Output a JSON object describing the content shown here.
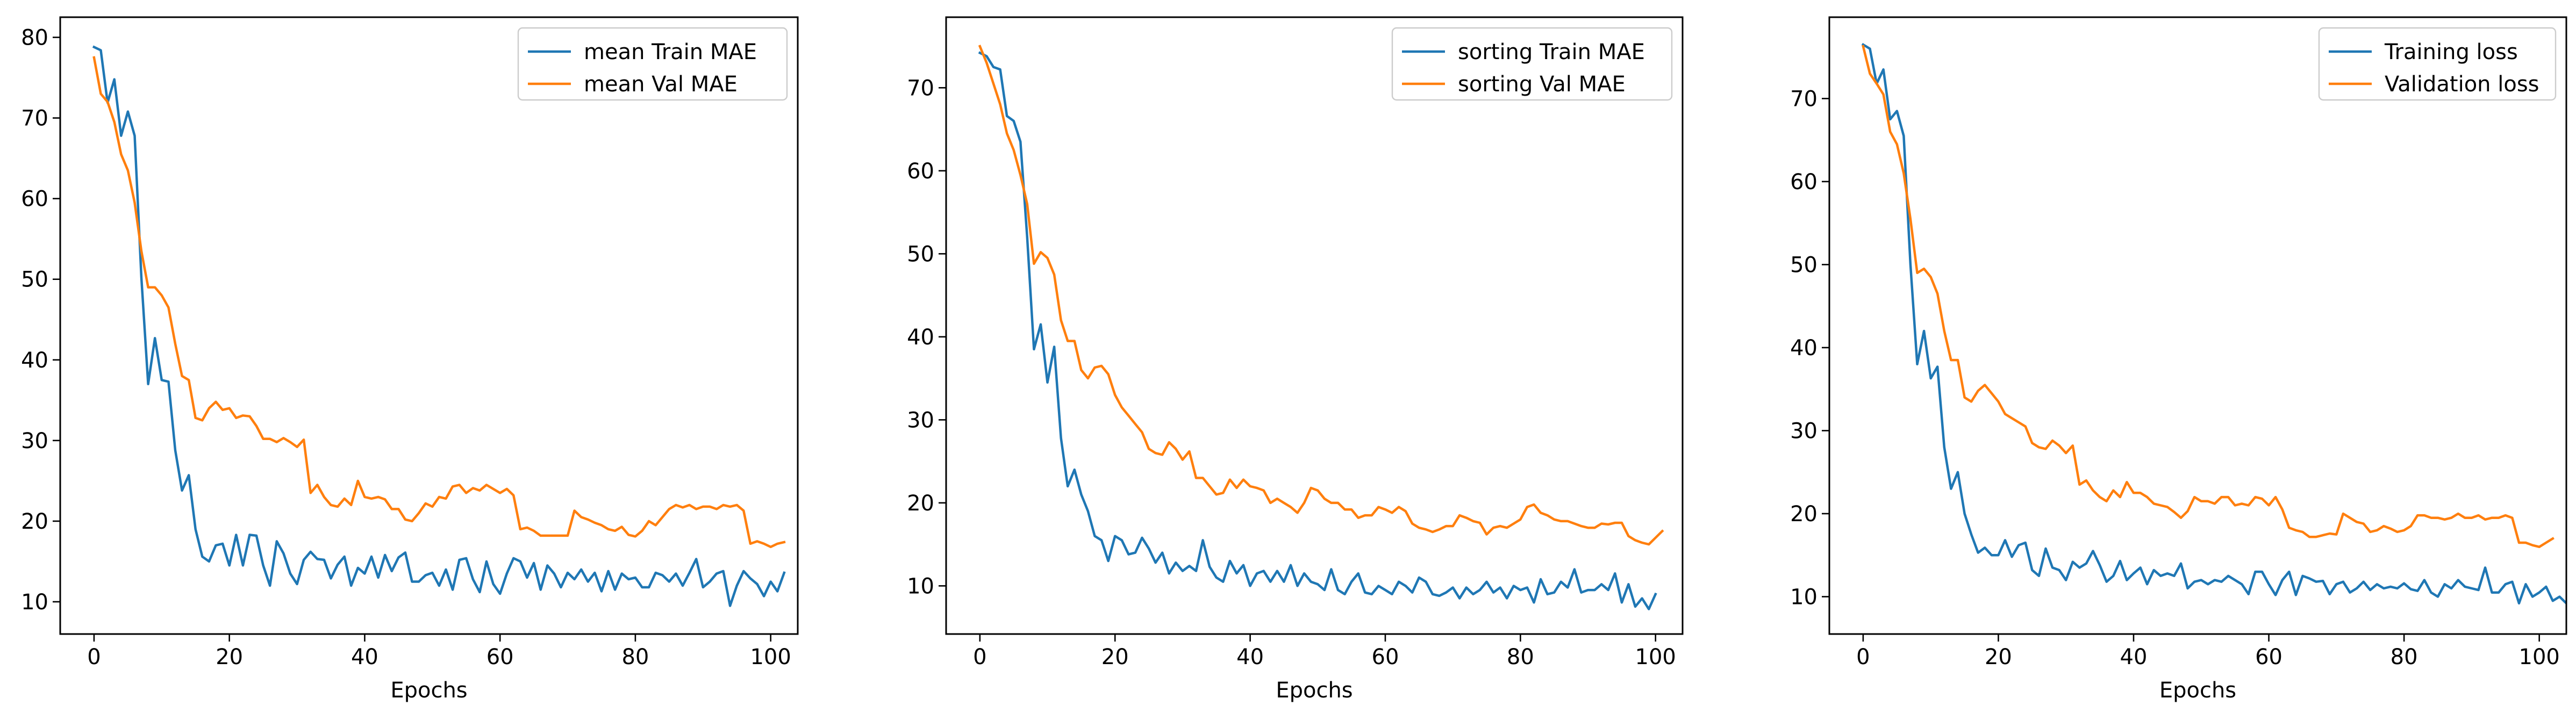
{
  "colors": {
    "series_1": "#1f77b4",
    "series_2": "#ff7f0e"
  },
  "chart_data": [
    {
      "type": "line",
      "xlabel": "Epochs",
      "ylabel": "",
      "xlim": [
        -5,
        104
      ],
      "ylim": [
        6,
        82.5
      ],
      "xticks": [
        0,
        20,
        40,
        60,
        80,
        100
      ],
      "yticks": [
        10,
        20,
        30,
        40,
        50,
        60,
        70,
        80
      ],
      "grid": false,
      "legend_position": "top-right",
      "x_start": 0,
      "series": [
        {
          "name": "mean Train MAE",
          "color": "#1f77b4",
          "values": [
            78.8,
            78.4,
            71.9,
            74.8,
            67.8,
            70.8,
            67.8,
            50.2,
            37.0,
            42.7,
            37.5,
            37.3,
            28.8,
            23.8,
            25.7,
            19.0,
            15.6,
            15.0,
            17.0,
            17.2,
            14.5,
            18.3,
            14.5,
            18.3,
            18.2,
            14.5,
            12.0,
            17.5,
            16.0,
            13.5,
            12.2,
            15.2,
            16.2,
            15.3,
            15.2,
            12.9,
            14.6,
            15.6,
            12.0,
            14.2,
            13.5,
            15.6,
            13.0,
            15.8,
            13.8,
            15.5,
            16.1,
            12.5,
            12.5,
            13.3,
            13.6,
            12.0,
            14.0,
            11.5,
            15.2,
            15.4,
            12.8,
            11.2,
            15.0,
            12.2,
            11.0,
            13.5,
            15.4,
            15.0,
            13.0,
            14.8,
            11.5,
            14.5,
            13.5,
            11.8,
            13.6,
            12.8,
            14.0,
            12.5,
            13.6,
            11.3,
            13.8,
            11.5,
            13.5,
            12.8,
            13.0,
            11.8,
            11.8,
            13.6,
            13.3,
            12.5,
            13.5,
            12.0,
            13.6,
            15.3,
            11.8,
            12.5,
            13.5,
            13.8,
            9.5,
            12.0,
            13.8,
            12.9,
            12.2,
            10.7,
            12.5,
            11.3,
            13.6
          ]
        },
        {
          "name": "mean Val MAE",
          "color": "#ff7f0e",
          "values": [
            77.5,
            73.0,
            72.0,
            69.5,
            65.5,
            63.5,
            59.5,
            53.5,
            49.0,
            49.0,
            48.0,
            46.5,
            42.0,
            38.0,
            37.5,
            32.8,
            32.5,
            34.0,
            34.8,
            33.8,
            34.0,
            32.8,
            33.1,
            33.0,
            31.8,
            30.2,
            30.2,
            29.8,
            30.3,
            29.8,
            29.2,
            30.1,
            23.5,
            24.5,
            23.0,
            22.0,
            21.8,
            22.8,
            22.0,
            25.0,
            23.0,
            22.8,
            23.0,
            22.7,
            21.5,
            21.5,
            20.2,
            20.0,
            21.0,
            22.2,
            21.8,
            23.0,
            22.8,
            24.3,
            24.5,
            23.5,
            24.1,
            23.8,
            24.5,
            24.0,
            23.5,
            24.0,
            23.2,
            19.0,
            19.2,
            18.8,
            18.2,
            18.2,
            18.2,
            18.2,
            18.2,
            21.3,
            20.5,
            20.2,
            19.8,
            19.5,
            19.0,
            18.8,
            19.3,
            18.3,
            18.1,
            18.8,
            20.0,
            19.5,
            20.5,
            21.5,
            22.0,
            21.7,
            22.0,
            21.5,
            21.8,
            21.8,
            21.5,
            22.0,
            21.8,
            22.0,
            21.3,
            17.2,
            17.5,
            17.2,
            16.8,
            17.2,
            17.4
          ]
        }
      ]
    },
    {
      "type": "line",
      "xlabel": "Epochs",
      "ylabel": "",
      "xlim": [
        -5,
        104
      ],
      "ylim": [
        4.2,
        78.5
      ],
      "xticks": [
        0,
        20,
        40,
        60,
        80,
        100
      ],
      "yticks": [
        10,
        20,
        30,
        40,
        50,
        60,
        70
      ],
      "grid": false,
      "legend_position": "top-right",
      "x_start": 0,
      "series": [
        {
          "name": "sorting Train MAE",
          "color": "#1f77b4",
          "values": [
            74.2,
            73.8,
            72.5,
            72.2,
            66.6,
            66.0,
            63.5,
            52.0,
            38.5,
            41.5,
            34.5,
            38.8,
            27.8,
            22.0,
            24.0,
            21.0,
            19.0,
            16.0,
            15.5,
            13.0,
            16.0,
            15.5,
            13.8,
            14.0,
            15.8,
            14.5,
            12.8,
            14.0,
            11.5,
            12.8,
            11.8,
            12.4,
            11.8,
            15.5,
            12.3,
            11.0,
            10.5,
            13.0,
            11.5,
            12.5,
            10.0,
            11.5,
            11.8,
            10.5,
            11.8,
            10.5,
            12.5,
            10.0,
            11.5,
            10.5,
            10.2,
            9.5,
            12.0,
            9.5,
            9.0,
            10.5,
            11.5,
            9.2,
            9.0,
            10.0,
            9.5,
            9.0,
            10.5,
            10.0,
            9.2,
            11.0,
            10.5,
            9.0,
            8.8,
            9.2,
            9.8,
            8.5,
            9.8,
            9.0,
            9.5,
            10.5,
            9.2,
            9.8,
            8.5,
            10.0,
            9.5,
            9.8,
            8.0,
            10.8,
            9.0,
            9.2,
            10.5,
            9.8,
            12.0,
            9.2,
            9.5,
            9.5,
            10.2,
            9.5,
            11.5,
            8.0,
            10.2,
            7.5,
            8.5,
            7.2,
            9.0
          ]
        },
        {
          "name": "sorting Val MAE",
          "color": "#ff7f0e",
          "values": [
            75.0,
            73.0,
            70.5,
            68.0,
            64.5,
            62.5,
            59.5,
            56.0,
            48.8,
            50.2,
            49.5,
            47.5,
            42.0,
            39.5,
            39.5,
            36.0,
            35.0,
            36.3,
            36.5,
            35.5,
            33.0,
            31.5,
            30.5,
            29.5,
            28.5,
            26.5,
            26.0,
            25.8,
            27.3,
            26.5,
            25.2,
            26.2,
            23.0,
            23.0,
            22.0,
            21.0,
            21.2,
            22.8,
            21.8,
            22.8,
            22.0,
            21.8,
            21.5,
            20.0,
            20.5,
            20.0,
            19.5,
            18.8,
            20.0,
            21.8,
            21.5,
            20.5,
            20.0,
            20.0,
            19.2,
            19.2,
            18.2,
            18.5,
            18.5,
            19.5,
            19.2,
            18.8,
            19.5,
            19.0,
            17.5,
            17.0,
            16.8,
            16.5,
            16.8,
            17.2,
            17.2,
            18.5,
            18.2,
            17.8,
            17.6,
            16.2,
            17.0,
            17.2,
            17.0,
            17.5,
            18.0,
            19.5,
            19.8,
            18.8,
            18.5,
            18.0,
            17.8,
            17.8,
            17.5,
            17.2,
            17.0,
            17.0,
            17.5,
            17.4,
            17.6,
            17.6,
            16.0,
            15.5,
            15.2,
            15.0,
            15.8,
            16.6
          ]
        }
      ]
    },
    {
      "type": "line",
      "xlabel": "Epochs",
      "ylabel": "",
      "xlim": [
        -5,
        104
      ],
      "ylim": [
        5.5,
        79.8
      ],
      "xticks": [
        0,
        20,
        40,
        60,
        80,
        100
      ],
      "yticks": [
        10,
        20,
        30,
        40,
        50,
        60,
        70
      ],
      "grid": false,
      "legend_position": "top-right",
      "x_start": 0,
      "series": [
        {
          "name": "Training loss",
          "color": "#1f77b4",
          "values": [
            76.5,
            76.0,
            71.8,
            73.5,
            67.5,
            68.5,
            65.5,
            50.0,
            38.0,
            42.0,
            36.3,
            37.7,
            28.0,
            23.0,
            25.0,
            20.0,
            17.5,
            15.3,
            15.9,
            15.0,
            15.0,
            16.8,
            14.8,
            16.2,
            16.5,
            13.2,
            12.5,
            15.8,
            13.5,
            13.2,
            12.0,
            14.2,
            13.5,
            14.0,
            15.5,
            13.8,
            11.8,
            12.5,
            14.3,
            12.0,
            12.8,
            13.5,
            11.5,
            13.2,
            12.5,
            12.8,
            12.5,
            14.0,
            11.0,
            11.8,
            12.0,
            11.5,
            12.0,
            11.8,
            12.5,
            12.0,
            11.5,
            10.3,
            13.0,
            13.0,
            11.5,
            10.2,
            12.0,
            13.0,
            10.2,
            12.5,
            12.2,
            11.8,
            11.9,
            10.3,
            11.5,
            11.8,
            10.5,
            11.0,
            11.8,
            10.8,
            11.5,
            11.0,
            11.2,
            11.0,
            11.6,
            10.9,
            10.7,
            12.0,
            10.5,
            10.0,
            11.5,
            11.0,
            12.0,
            11.2,
            11.0,
            10.8,
            13.5,
            10.5,
            10.5,
            11.5,
            11.8,
            9.2,
            11.5,
            10.0,
            10.5,
            11.2,
            9.5,
            10.0,
            9.2,
            11.2
          ]
        },
        {
          "name": "Validation loss",
          "color": "#ff7f0e",
          "values": [
            76.3,
            73.0,
            71.8,
            70.5,
            66.0,
            64.5,
            61.0,
            55.5,
            49.0,
            49.5,
            48.5,
            46.5,
            42.0,
            38.5,
            38.5,
            34.0,
            33.5,
            34.8,
            35.5,
            34.5,
            33.5,
            32.0,
            31.5,
            31.0,
            30.5,
            28.5,
            28.0,
            27.8,
            28.8,
            28.2,
            27.3,
            28.2,
            23.5,
            24.0,
            22.8,
            22.0,
            21.5,
            22.8,
            22.0,
            23.8,
            22.5,
            22.5,
            22.0,
            21.2,
            21.0,
            20.8,
            20.2,
            19.5,
            20.3,
            22.0,
            21.5,
            21.5,
            21.2,
            22.0,
            22.0,
            21.0,
            21.2,
            21.0,
            22.0,
            21.8,
            21.0,
            22.0,
            20.5,
            18.3,
            18.0,
            17.8,
            17.2,
            17.2,
            17.4,
            17.6,
            17.5,
            20.0,
            19.5,
            19.0,
            18.8,
            17.8,
            18.0,
            18.5,
            18.2,
            17.8,
            18.0,
            18.5,
            19.8,
            19.8,
            19.5,
            19.5,
            19.3,
            19.5,
            20.0,
            19.5,
            19.5,
            19.8,
            19.3,
            19.5,
            19.5,
            19.8,
            19.5,
            16.5,
            16.5,
            16.2,
            16.0,
            16.5,
            17.0
          ]
        }
      ]
    }
  ]
}
